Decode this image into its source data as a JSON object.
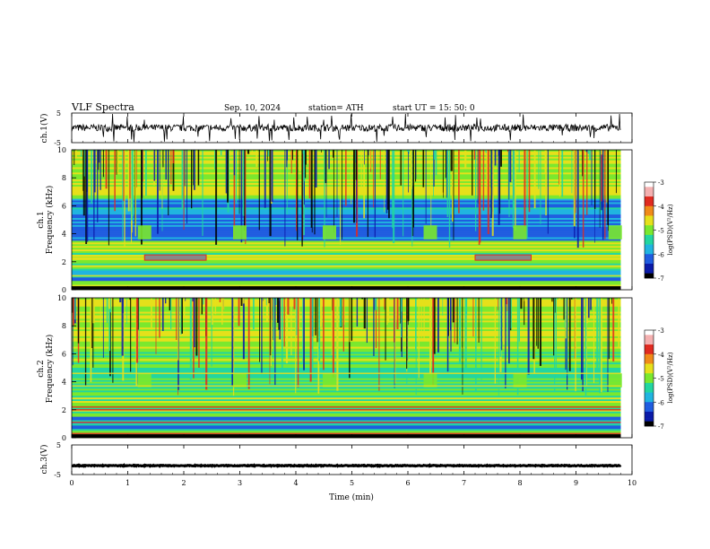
{
  "header": {
    "title": "VLF  Spectra",
    "date": "Sep. 10, 2024",
    "station": "station= ATH",
    "start": "start  UT  =   15: 50: 0"
  },
  "chart_data": [
    {
      "type": "line",
      "name_label": "ch.1(V)",
      "ylim": [
        -5,
        5
      ],
      "yticks": [
        "5",
        "-5"
      ],
      "xlim": [
        0,
        10
      ],
      "baseline": 0,
      "amplitude": 1.2,
      "description_values": "noisy waveform around 0 V with sharp spikes to about ±5 V"
    },
    {
      "type": "heatmap",
      "channel_label": "ch.1",
      "ylabel": "Frequency  (kHz)",
      "ylim": [
        0,
        10
      ],
      "yticks": [
        "0",
        "2",
        "4",
        "6",
        "8",
        "10"
      ],
      "xlim": [
        0,
        9.8
      ],
      "colorbar": {
        "label": "log(PSD)(V²/Hz)",
        "range": [
          -7,
          -3
        ],
        "ticks": [
          "-3",
          "-4",
          "-5",
          "-6",
          "-7"
        ]
      },
      "bursts_min": [
        1.3,
        3.0,
        4.6,
        6.4,
        8.0,
        9.7
      ],
      "tone_khz": 2.3,
      "tone_segments_min": [
        [
          1.3,
          2.4
        ],
        [
          7.2,
          8.2
        ]
      ]
    },
    {
      "type": "heatmap",
      "channel_label": "ch.2",
      "ylabel": "Frequency  (kHz)",
      "ylim": [
        0,
        10
      ],
      "yticks": [
        "0",
        "2",
        "4",
        "6",
        "8",
        "10"
      ],
      "xlim": [
        0,
        9.8
      ],
      "colorbar": {
        "label": "log(PSD)(V²/Hz)",
        "range": [
          -7,
          -3
        ],
        "ticks": [
          "-3",
          "-4",
          "-5",
          "-6",
          "-7"
        ]
      },
      "bursts_min": [
        1.3,
        3.0,
        4.6,
        6.4,
        8.0,
        9.7
      ],
      "tone_khz": 2.0
    },
    {
      "type": "line",
      "name_label": "ch.3(V)",
      "ylim": [
        -5,
        5
      ],
      "yticks": [
        "5",
        "-5"
      ],
      "xlim": [
        0,
        10
      ],
      "baseline": -2,
      "amplitude": 0.15,
      "xlabel": "Time  (min)",
      "xticks": [
        "0",
        "1",
        "2",
        "3",
        "4",
        "5",
        "6",
        "7",
        "8",
        "9",
        "10"
      ]
    }
  ],
  "colors": {
    "colormap": [
      "#000000",
      "#0a1aa8",
      "#1f5ce0",
      "#20b4e0",
      "#22d6a0",
      "#7ae82e",
      "#e6e01a",
      "#f08a18",
      "#e02a20",
      "#f4b0b0",
      "#ffffff"
    ]
  }
}
